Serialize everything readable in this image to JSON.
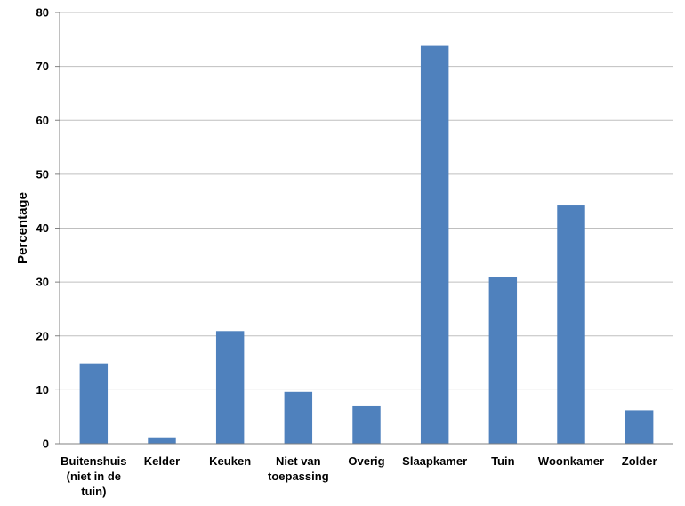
{
  "chart_data": {
    "type": "bar",
    "title": "",
    "xlabel": "",
    "ylabel": "Percentage",
    "ylim": [
      0,
      80
    ],
    "yticks": [
      0,
      10,
      20,
      30,
      40,
      50,
      60,
      70,
      80
    ],
    "grid": true,
    "legend": "none",
    "categories": [
      [
        "Buitenshuis",
        "(niet in de",
        "tuin)"
      ],
      [
        "Kelder"
      ],
      [
        "Keuken"
      ],
      [
        "Niet van",
        "toepassing"
      ],
      [
        "Overig"
      ],
      [
        "Slaapkamer"
      ],
      [
        "Tuin"
      ],
      [
        "Woonkamer"
      ],
      [
        "Zolder"
      ]
    ],
    "values": [
      14.9,
      1.2,
      20.9,
      9.6,
      7.1,
      73.8,
      31.0,
      44.2,
      6.2
    ],
    "colors": {
      "bar": "#4f81bd",
      "grid": "#bfbfbf",
      "axis": "#808080"
    }
  }
}
